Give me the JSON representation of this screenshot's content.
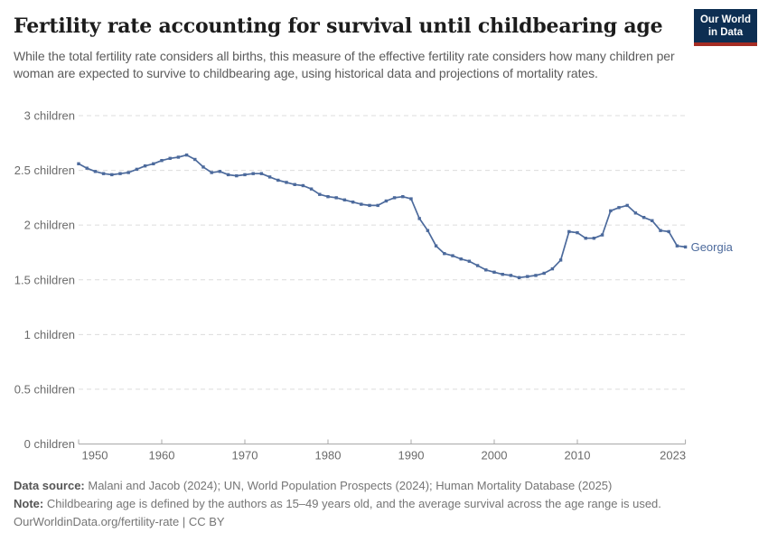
{
  "header": {
    "subtitle": "While the total fertility rate considers all births, this measure of the effective fertility rate considers how many children per woman are expected to survive to childbearing age, using historical data and projections of mortality rates.",
    "logo_line1": "Our World",
    "logo_line2": "in Data"
  },
  "chart_data": {
    "type": "line",
    "title": "Fertility rate accounting for survival until childbearing age",
    "entity": "Georgia",
    "xlim": [
      1950,
      2023
    ],
    "ylim": [
      0,
      3
    ],
    "grid": "horizontal-dashed",
    "legend_position": "end-of-line-label",
    "x_ticks": [
      1950,
      1960,
      1970,
      1980,
      1990,
      2000,
      2010,
      2023
    ],
    "y_ticks": [
      0,
      0.5,
      1,
      1.5,
      2,
      2.5,
      3
    ],
    "y_tick_labels": [
      "0 children",
      "0.5 children",
      "1 children",
      "1.5 children",
      "2 children",
      "2.5 children",
      "3 children"
    ],
    "x": [
      1950,
      1951,
      1952,
      1953,
      1954,
      1955,
      1956,
      1957,
      1958,
      1959,
      1960,
      1961,
      1962,
      1963,
      1964,
      1965,
      1966,
      1967,
      1968,
      1969,
      1970,
      1971,
      1972,
      1973,
      1974,
      1975,
      1976,
      1977,
      1978,
      1979,
      1980,
      1981,
      1982,
      1983,
      1984,
      1985,
      1986,
      1987,
      1988,
      1989,
      1990,
      1991,
      1992,
      1993,
      1994,
      1995,
      1996,
      1997,
      1998,
      1999,
      2000,
      2001,
      2002,
      2003,
      2004,
      2005,
      2006,
      2007,
      2008,
      2009,
      2010,
      2011,
      2012,
      2013,
      2014,
      2015,
      2016,
      2017,
      2018,
      2019,
      2020,
      2021,
      2022,
      2023
    ],
    "values": [
      2.56,
      2.52,
      2.49,
      2.47,
      2.46,
      2.47,
      2.48,
      2.51,
      2.54,
      2.56,
      2.59,
      2.61,
      2.62,
      2.64,
      2.6,
      2.53,
      2.48,
      2.49,
      2.46,
      2.45,
      2.46,
      2.47,
      2.47,
      2.44,
      2.41,
      2.39,
      2.37,
      2.36,
      2.33,
      2.28,
      2.26,
      2.25,
      2.23,
      2.21,
      2.19,
      2.18,
      2.18,
      2.22,
      2.25,
      2.26,
      2.24,
      2.06,
      1.95,
      1.81,
      1.74,
      1.72,
      1.69,
      1.67,
      1.63,
      1.59,
      1.57,
      1.55,
      1.54,
      1.52,
      1.53,
      1.54,
      1.56,
      1.6,
      1.68,
      1.94,
      1.93,
      1.88,
      1.88,
      1.91,
      2.13,
      2.16,
      2.18,
      2.11,
      2.07,
      2.04,
      1.95,
      1.94,
      1.81,
      1.8
    ],
    "colors": {
      "line": "#4C6A9C",
      "grid": "#dcdcdc",
      "axis": "#a8a8a8",
      "tick_text": "#6b6b6b"
    }
  },
  "footer": {
    "data_source_label": "Data source:",
    "data_source": "Malani and Jacob (2024); UN, World Population Prospects (2024); Human Mortality Database (2025)",
    "note_label": "Note:",
    "note": "Childbearing age is defined by the authors as 15–49 years old, and the average survival across the age range is used.",
    "url": "OurWorldinData.org/fertility-rate",
    "separator": " | ",
    "license": "CC BY"
  }
}
